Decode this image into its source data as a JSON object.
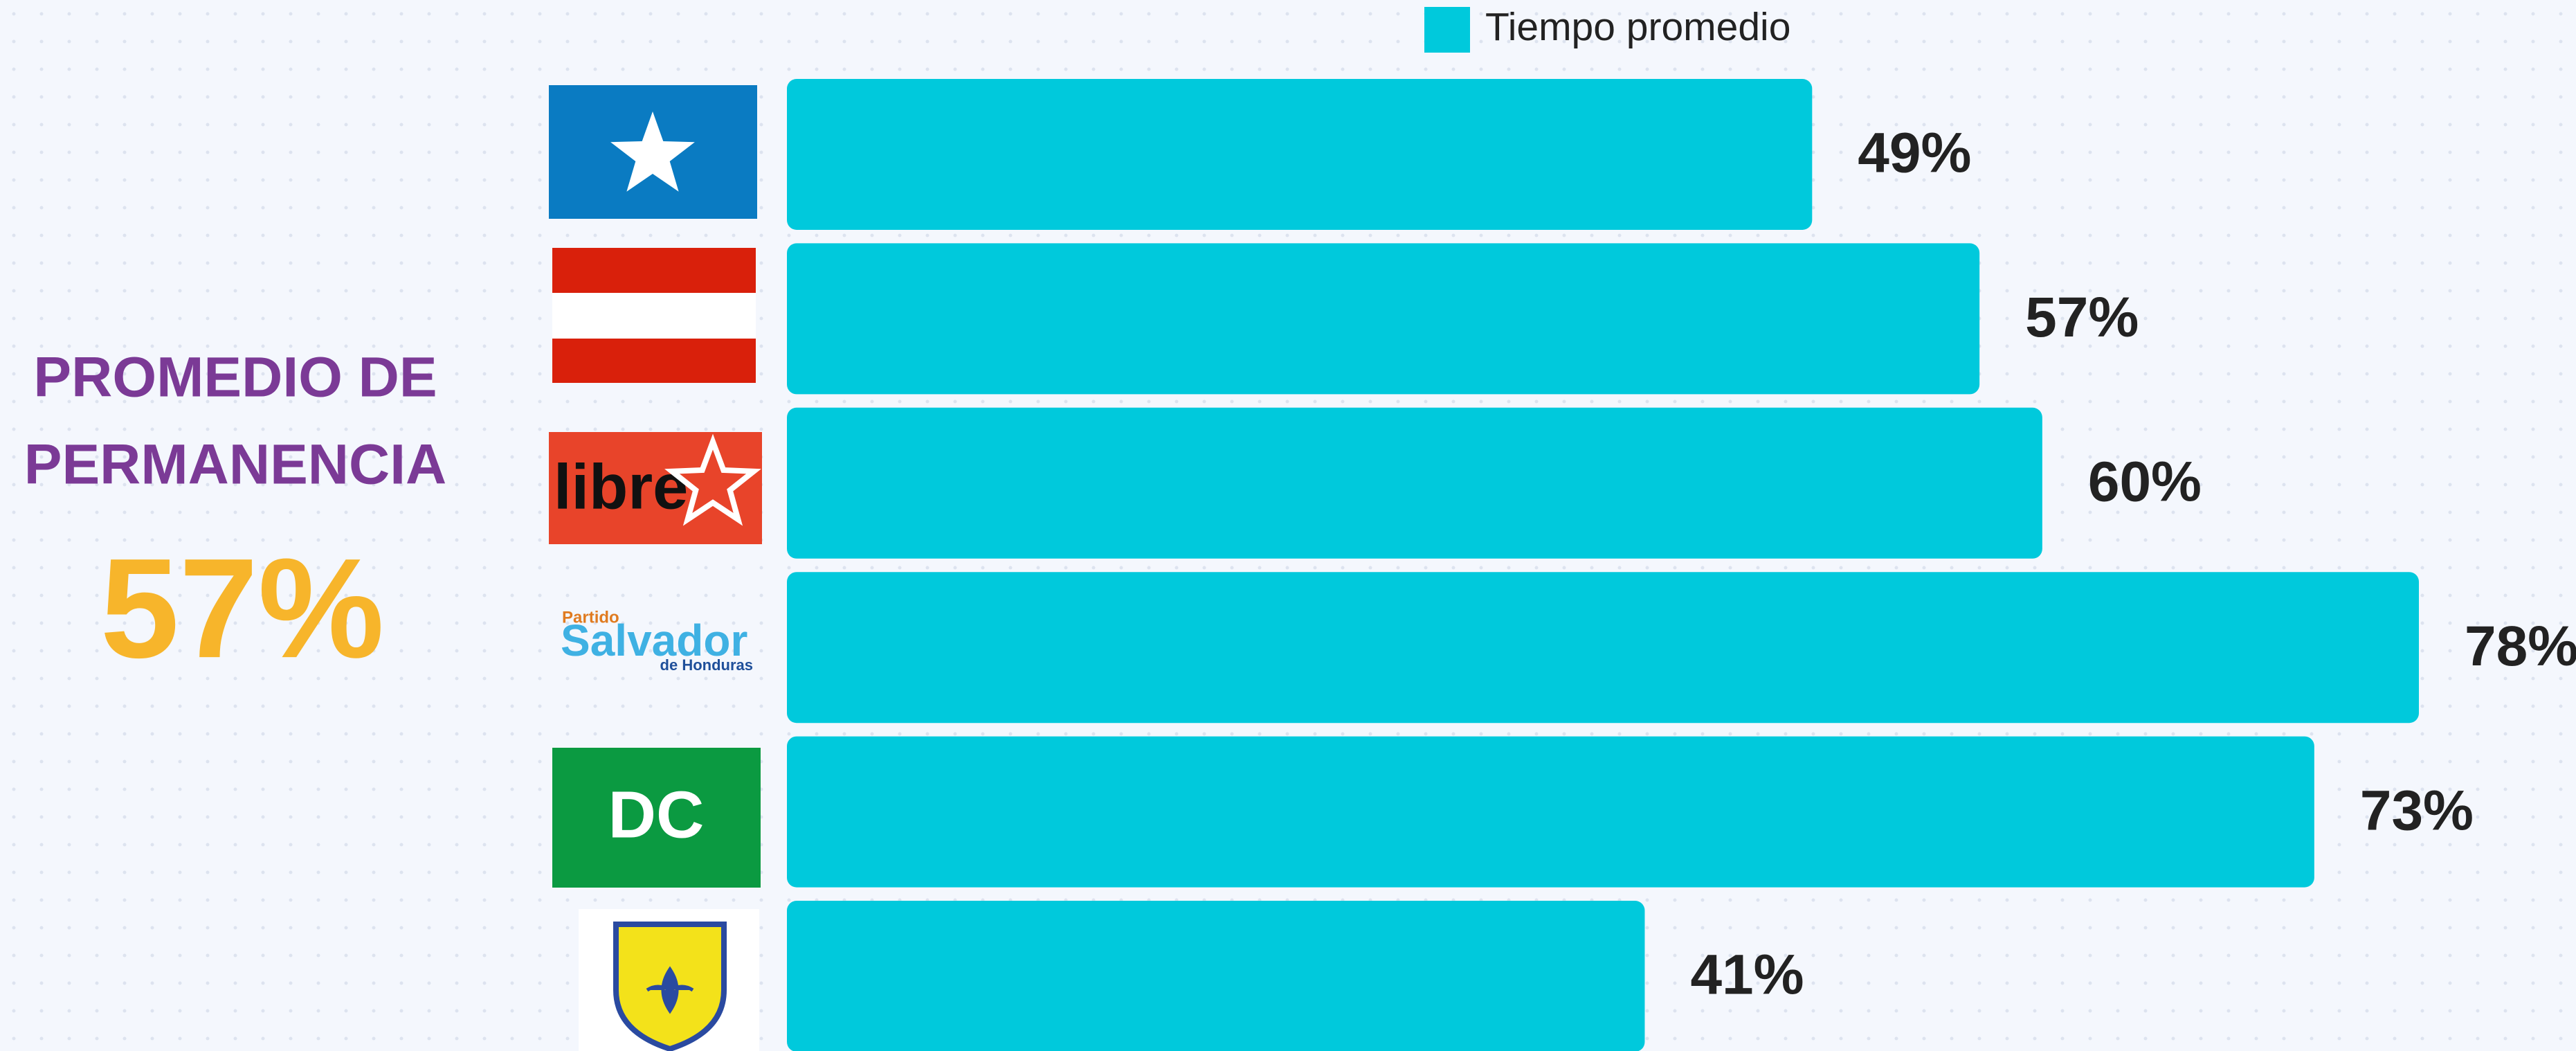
{
  "chart_data": {
    "type": "bar",
    "orientation": "horizontal",
    "categories": [
      null,
      null,
      null,
      null,
      null,
      null
    ],
    "logos": [
      null,
      null,
      [
        "libre"
      ],
      [
        "Partido",
        "Salvador",
        "de Honduras"
      ],
      [
        "DC"
      ],
      null
    ],
    "series": [
      {
        "name": "Tiempo promedio",
        "color": "#00c9dc",
        "values": [
          49,
          57,
          60,
          78,
          73,
          41
        ],
        "value_labels": [
          "49%",
          "57%",
          "60%",
          "78%",
          "73%",
          "41%"
        ]
      }
    ],
    "summary": {
      "title": [
        "PROMEDIO DE",
        "PERMANENCIA"
      ],
      "value": 57,
      "value_label": "57%",
      "title_color": "#7b3a96",
      "value_color": "#f7b52b"
    }
  }
}
